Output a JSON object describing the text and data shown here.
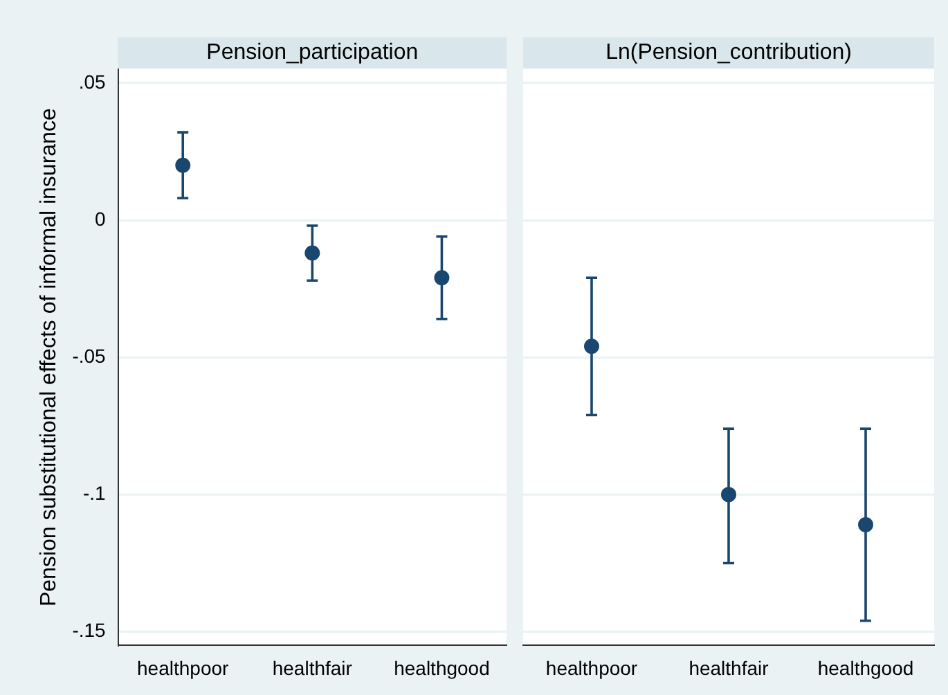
{
  "chart_data": [
    {
      "type": "scatter",
      "title": "Pension_participation",
      "ylabel": "Pension substitutional effects of informal insurance",
      "categories": [
        "healthpoor",
        "healthfair",
        "healthgood"
      ],
      "values": [
        0.02,
        -0.012,
        -0.021
      ],
      "errors": [
        [
          0.008,
          0.032
        ],
        [
          -0.022,
          -0.002
        ],
        [
          -0.036,
          -0.006
        ]
      ],
      "color": "#1a476f",
      "marker": "circle",
      "grid": "y",
      "ylim": [
        -0.155,
        0.055
      ],
      "yticks": [
        {
          "value": -0.15,
          "label": "-.15"
        },
        {
          "value": -0.1,
          "label": "-.1"
        },
        {
          "value": -0.05,
          "label": "-.05"
        },
        0,
        {
          "value": 0.05,
          "label": ".05"
        }
      ]
    },
    {
      "type": "scatter",
      "title": "Ln(Pension_contribution)",
      "categories": [
        "healthpoor",
        "healthfair",
        "healthgood"
      ],
      "values": [
        -0.046,
        -0.1,
        -0.111
      ],
      "errors": [
        [
          -0.071,
          -0.021
        ],
        [
          -0.125,
          -0.076
        ],
        [
          -0.146,
          -0.076
        ]
      ],
      "color": "#1a476f",
      "marker": "circle",
      "grid": "y",
      "tick_labels": "x",
      "ylim": [
        -0.155,
        0.055
      ],
      "yticks": [
        {
          "value": -0.15,
          "label": null
        },
        {
          "value": -0.1,
          "label": null
        },
        {
          "value": -0.05,
          "label": null
        },
        {
          "value": 0,
          "label": null
        },
        {
          "value": 0.05,
          "label": null
        }
      ]
    }
  ]
}
